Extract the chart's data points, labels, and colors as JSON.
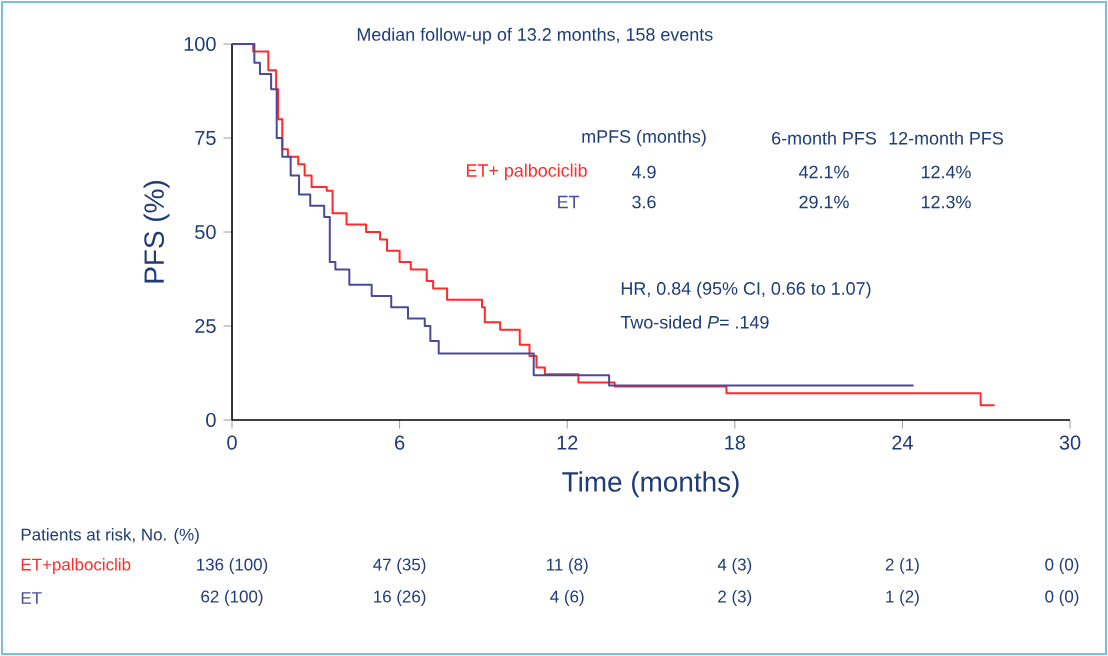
{
  "chart_data": {
    "type": "step",
    "xlabel": "Time (months)",
    "ylabel": "PFS (%)",
    "xlim": [
      0,
      30
    ],
    "xticks": [
      0,
      6,
      12,
      18,
      24,
      30
    ],
    "ylim": [
      0,
      100
    ],
    "yticks": [
      0,
      25,
      50,
      75,
      100
    ],
    "series": [
      {
        "name": "ET+ palbociclib",
        "color": "#ff2a2a",
        "x": [
          0,
          0.76,
          1.3,
          1.58,
          1.65,
          1.8,
          2.0,
          2.37,
          2.6,
          2.85,
          3.39,
          3.6,
          4.1,
          4.8,
          5.3,
          5.55,
          6.0,
          6.4,
          6.97,
          7.2,
          7.7,
          8.95,
          9.05,
          9.6,
          10.3,
          10.65,
          10.9,
          11.2,
          12.4,
          13.7,
          17.7,
          26.8,
          27.3
        ],
        "values": [
          100,
          98,
          93,
          88,
          80,
          72,
          70,
          68,
          65,
          62,
          61,
          55,
          52,
          50,
          48,
          45,
          42,
          40,
          37,
          35,
          32,
          30,
          26,
          24,
          20,
          17,
          14,
          12.2,
          10,
          8.9,
          7.1,
          3.9,
          3.9
        ]
      },
      {
        "name": "ET",
        "color": "#4a4a9a",
        "x": [
          0,
          0.8,
          1.0,
          1.4,
          1.6,
          1.8,
          2.1,
          2.4,
          2.8,
          3.3,
          3.5,
          3.7,
          4.2,
          5.0,
          5.7,
          6.3,
          6.9,
          7.1,
          7.4,
          10.8,
          13.5,
          24.4
        ],
        "values": [
          100,
          95,
          92,
          88,
          75,
          70,
          65,
          60,
          57,
          54,
          42,
          40,
          36,
          33,
          30,
          27,
          25,
          21,
          17.7,
          11.9,
          9.2,
          9.2
        ]
      }
    ],
    "annotations": [
      "Median follow-up of 13.2 months, 158 events",
      "mPFS (months)",
      "6-month PFS",
      "12-month PFS",
      "4.9",
      "42.1%",
      "12.4%",
      "3.6",
      "29.1%",
      "12.3%",
      "HR, 0.84 (95% CI, 0.66 to 1.07)",
      "Two-sided *P*= .149",
      "Patients at risk, No. (%)",
      "ET+palbociclib",
      "136 (100)",
      "47 (35)",
      "11 (8)",
      "4 (3)",
      "2 (1)",
      "0 (0)",
      "ET",
      "62 (100)",
      "16 (26)",
      "4 (6)",
      "2 (3)",
      "1 (2)",
      "0 (0)"
    ],
    "grid": false,
    "legend": false,
    "marker": "none",
    "line_style": "solid"
  }
}
